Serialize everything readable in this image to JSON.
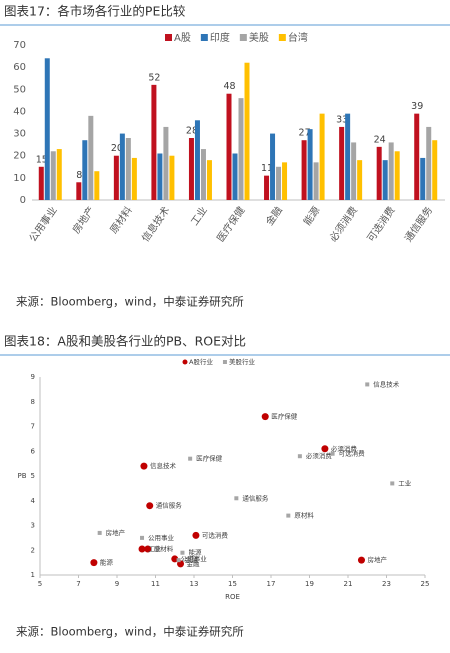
{
  "chart_data": [
    {
      "type": "bar",
      "title": "图表17：各市场各行业的PE比较",
      "source": "来源：Bloomberg，wind，中泰证券研究所",
      "categories": [
        "公用事业",
        "房地产",
        "原材料",
        "信息技术",
        "工业",
        "医疗保健",
        "金融",
        "能源",
        "必须消费",
        "可选消费",
        "通信服务"
      ],
      "series": [
        {
          "name": "A股",
          "color": "#c0111f",
          "data_labels": true,
          "values": [
            15,
            8,
            20,
            52,
            28,
            48,
            11,
            27,
            33,
            24,
            39
          ]
        },
        {
          "name": "印度",
          "color": "#2e75b6",
          "data_labels": false,
          "values": [
            64,
            27,
            30,
            21,
            36,
            21,
            30,
            32,
            39,
            18,
            19
          ]
        },
        {
          "name": "美股",
          "color": "#a5a5a5",
          "data_labels": false,
          "values": [
            22,
            38,
            28,
            33,
            23,
            46,
            15,
            17,
            26,
            26,
            33
          ]
        },
        {
          "name": "台湾",
          "color": "#ffc000",
          "data_labels": false,
          "values": [
            23,
            13,
            19,
            20,
            18,
            62,
            17,
            39,
            18,
            22,
            27
          ]
        }
      ],
      "ylim": [
        0,
        70
      ],
      "yticks": [
        0,
        10,
        20,
        30,
        40,
        50,
        60,
        70
      ],
      "grid": false,
      "legend": "top"
    },
    {
      "type": "scatter",
      "title": "图表18：A股和美股各行业的PB、ROE对比",
      "source": "来源：Bloomberg，wind，中泰证券研究所",
      "x_label": "ROE",
      "y_label": "PB",
      "series": [
        {
          "name": "A股行业",
          "color": "#c00000",
          "marker": "circle",
          "labels": [
            "医疗保健",
            "必须消费",
            "信息技术",
            "通信服务",
            "可选消费",
            "原材料",
            "工业",
            "公用事业",
            "金融",
            "能源",
            "房地产"
          ],
          "x": [
            16.7,
            19.8,
            10.4,
            10.7,
            13.1,
            10.6,
            10.3,
            12.0,
            12.3,
            7.8,
            21.7
          ],
          "y": [
            7.4,
            6.1,
            5.4,
            3.8,
            2.6,
            2.05,
            2.05,
            1.65,
            1.45,
            1.5,
            1.6
          ]
        },
        {
          "name": "美股行业",
          "color": "#a6a6a6",
          "marker": "square",
          "labels": [
            "信息技术",
            "医疗保健",
            "必须消费",
            "可选消费",
            "工业",
            "通信服务",
            "原材料",
            "房地产",
            "公用事业",
            "能源",
            "金融"
          ],
          "x": [
            22.0,
            12.8,
            18.5,
            20.2,
            23.3,
            15.2,
            17.9,
            8.1,
            10.3,
            12.4,
            12.2
          ],
          "y": [
            8.7,
            5.7,
            5.8,
            5.9,
            4.7,
            4.1,
            3.4,
            2.7,
            2.5,
            1.9,
            1.6
          ]
        }
      ],
      "xlim": [
        5,
        25
      ],
      "xticks": [
        5,
        7,
        9,
        11,
        13,
        15,
        17,
        19,
        21,
        23,
        25
      ],
      "ylim": [
        1,
        9
      ],
      "yticks": [
        1,
        2,
        3,
        4,
        5,
        6,
        7,
        8,
        9
      ],
      "grid": false,
      "legend": "top"
    }
  ]
}
